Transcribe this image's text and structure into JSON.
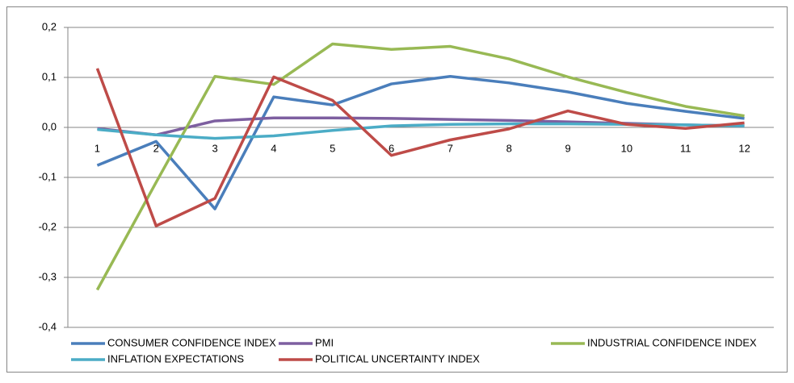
{
  "chart_data": {
    "type": "line",
    "categories": [
      "1",
      "2",
      "3",
      "4",
      "5",
      "6",
      "7",
      "8",
      "9",
      "10",
      "11",
      "12"
    ],
    "series": [
      {
        "name": "CONSUMER CONFIDENCE INDEX",
        "color": "#4a7ebb",
        "values": [
          -0.076,
          -0.028,
          -0.163,
          0.061,
          0.045,
          0.087,
          0.102,
          0.089,
          0.071,
          0.048,
          0.032,
          0.018
        ]
      },
      {
        "name": "PMI",
        "color": "#7d5fa0",
        "values": [
          -0.002,
          -0.015,
          0.013,
          0.019,
          0.019,
          0.018,
          0.016,
          0.014,
          0.011,
          0.008,
          0.005,
          0.003
        ]
      },
      {
        "name": "INDUSTRIAL CONFIDENCE INDEX",
        "color": "#98b954",
        "values": [
          -0.325,
          -0.11,
          0.102,
          0.086,
          0.167,
          0.156,
          0.162,
          0.137,
          0.101,
          0.07,
          0.042,
          0.023
        ]
      },
      {
        "name": "INFLATION EXPECTATIONS",
        "color": "#4bacc6",
        "values": [
          -0.004,
          -0.015,
          -0.022,
          -0.017,
          -0.006,
          0.003,
          0.006,
          0.007,
          0.007,
          0.006,
          0.005,
          0.003
        ]
      },
      {
        "name": "POLITICAL UNCERTAINTY INDEX",
        "color": "#be4b48",
        "values": [
          0.118,
          -0.197,
          -0.142,
          0.101,
          0.054,
          -0.056,
          -0.025,
          -0.003,
          0.033,
          0.006,
          -0.002,
          0.009
        ]
      }
    ],
    "ylim": [
      -0.4,
      0.2
    ],
    "yticks": [
      {
        "value": -0.4,
        "label": "-0,4"
      },
      {
        "value": -0.3,
        "label": "-0,3"
      },
      {
        "value": -0.2,
        "label": "-0,2"
      },
      {
        "value": -0.1,
        "label": "-0,1"
      },
      {
        "value": 0,
        "label": "0,0"
      },
      {
        "value": 0.1,
        "label": "0,1"
      },
      {
        "value": 0.2,
        "label": "0,2"
      }
    ],
    "grid": true,
    "legend": "bottom"
  }
}
